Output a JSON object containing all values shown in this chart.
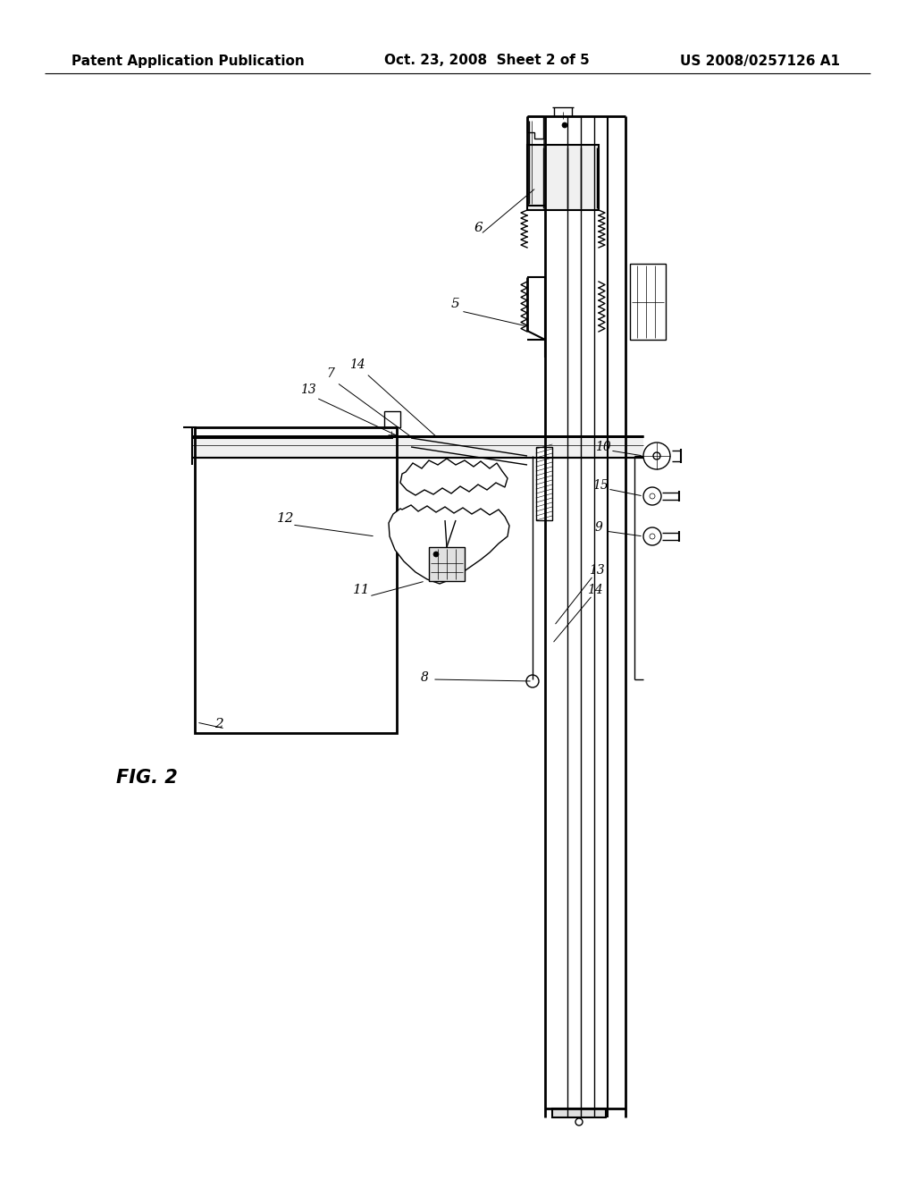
{
  "background_color": "#ffffff",
  "header_left": "Patent Application Publication",
  "header_center": "Oct. 23, 2008  Sheet 2 of 5",
  "header_right": "US 2008/0257126 A1",
  "fig_label": "FIG. 2",
  "line_color": "#000000",
  "header_fontsize": 11,
  "fig_label_fontsize": 15,
  "label_fontsize": 10
}
